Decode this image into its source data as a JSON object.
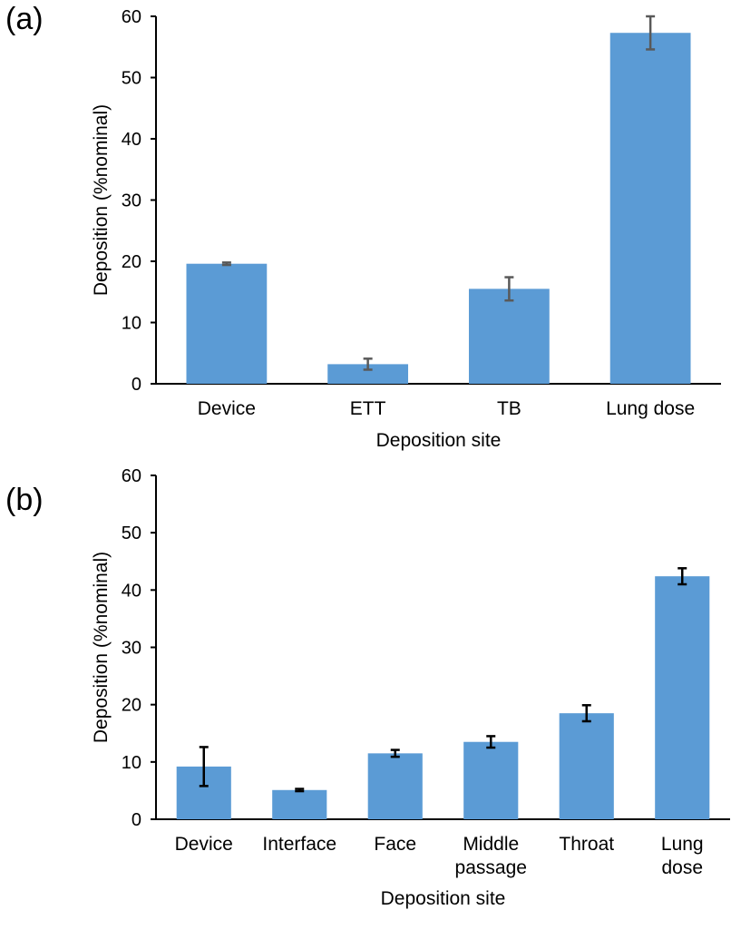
{
  "chart_data": [
    {
      "type": "bar",
      "panel_label": "(a)",
      "title": "",
      "xlabel": "Deposition site",
      "ylabel": "Deposition (%nominal)",
      "ylim": [
        0,
        60
      ],
      "yticks": [
        0,
        10,
        20,
        30,
        40,
        50,
        60
      ],
      "categories": [
        [
          "Device"
        ],
        [
          "ETT"
        ],
        [
          "TB"
        ],
        [
          "Lung dose"
        ]
      ],
      "values": [
        19.6,
        3.2,
        15.5,
        57.3
      ],
      "errors": [
        0.2,
        0.9,
        1.9,
        2.7
      ],
      "bar_color": "#5B9BD5",
      "error_color": "#595959",
      "grid": false
    },
    {
      "type": "bar",
      "panel_label": "(b)",
      "title": "",
      "xlabel": "Deposition site",
      "ylabel": "Deposition (%nominal)",
      "ylim": [
        0,
        60
      ],
      "yticks": [
        0,
        10,
        20,
        30,
        40,
        50,
        60
      ],
      "categories": [
        [
          "Device"
        ],
        [
          "Interface"
        ],
        [
          "Face"
        ],
        [
          "Middle",
          "passage"
        ],
        [
          "Throat"
        ],
        [
          "Lung",
          "dose"
        ]
      ],
      "values": [
        9.2,
        5.1,
        11.5,
        13.5,
        18.5,
        42.4
      ],
      "errors": [
        3.4,
        0.2,
        0.6,
        1.0,
        1.4,
        1.4
      ],
      "bar_color": "#5B9BD5",
      "error_color": "#000000",
      "grid": false
    }
  ]
}
